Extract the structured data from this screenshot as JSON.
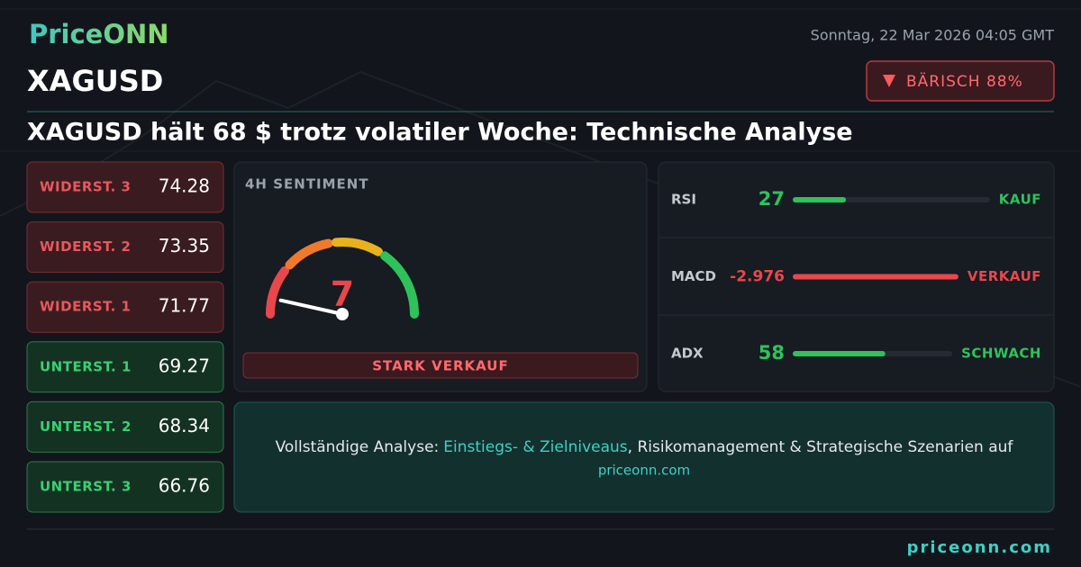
{
  "brand": "PriceONN",
  "datetime": "Sonntag, 22 Mar 2026 04:05 GMT",
  "symbol": "XAGUSD",
  "badge": "BÄRISCH 88%",
  "headline": "XAGUSD hält 68 $ trotz volatiler Woche: Technische Analyse",
  "levels": [
    {
      "label": "WIDERST. 3",
      "value": "74.28",
      "color": "#e8585e"
    },
    {
      "label": "WIDERST. 2",
      "value": "73.35",
      "color": "#e8585e"
    },
    {
      "label": "WIDERST. 1",
      "value": "71.77",
      "color": "#e8585e"
    },
    {
      "label": "UNTERST. 1",
      "value": "69.27",
      "color": "#3ccf72"
    },
    {
      "label": "UNTERST. 2",
      "value": "68.34",
      "color": "#3ccf72"
    },
    {
      "label": "UNTERST. 3",
      "value": "66.76",
      "color": "#3ccf72"
    }
  ],
  "sentiment": {
    "title": "4H SENTIMENT",
    "value": 7,
    "signal": "STARK VERKAUF"
  },
  "indicators": [
    {
      "name": "RSI",
      "value": 27,
      "signal": "KAUF",
      "color": "#2fc25b"
    },
    {
      "name": "MACD",
      "value": -2.976,
      "signal": "VERKAUF",
      "color": "#e8474c"
    },
    {
      "name": "ADX",
      "value": 58,
      "signal": "SCHWACH",
      "color": "#2fc25b"
    }
  ],
  "cta": {
    "lead": "Vollständige Analyse:",
    "highlight": "Einstiegs- & Zielniveaus",
    "rest": ", Risikomanagement & Strategische Szenarien auf",
    "link": "priceonn.com"
  },
  "footer": "priceonn.com"
}
